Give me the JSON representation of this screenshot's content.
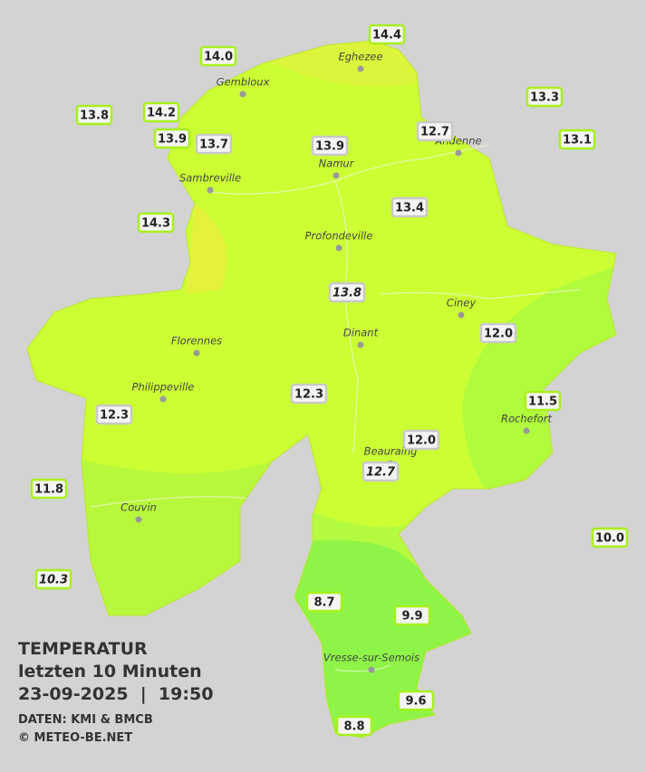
{
  "title": "TEMPERATUR",
  "subtitle": "letzten 10 Minuten",
  "timestamp": "23-09-2025  |  19:50",
  "source": "DATEN: KMI & BMCB",
  "copyright": "© METEO-BE.NET",
  "cities": [
    "Eghezee",
    "Gembloux",
    "Andenne",
    "Namur",
    "Sambreville",
    "Profondeville",
    "Ciney",
    "Dinant",
    "Florennes",
    "Philippeville",
    "Rochefort",
    "Beauraing",
    "Couvin",
    "Vresse-sur-Semois"
  ],
  "stations": [
    "14.4",
    "14.0",
    "13.3",
    "13.8",
    "14.2",
    "12.7",
    "13.9",
    "13.7",
    "13.9",
    "13.1",
    "14.3",
    "13.4",
    "13.8",
    "12.0",
    "12.3",
    "11.5",
    "12.3",
    "12.0",
    "12.7",
    "11.8",
    "10.0",
    "10.3",
    "8.7",
    "9.9",
    "9.6",
    "8.8"
  ]
}
